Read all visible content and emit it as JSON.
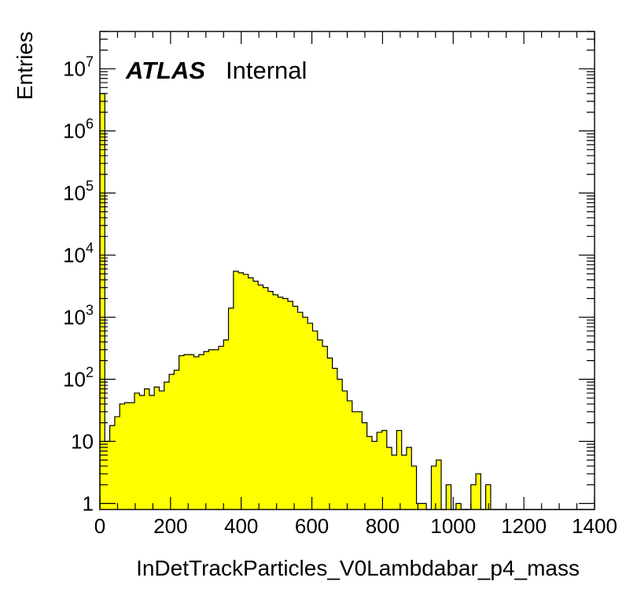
{
  "chart_data": {
    "type": "bar",
    "title": "",
    "xlabel": "InDetTrackParticles_V0Lambdabar_p4_mass",
    "ylabel": "Entries",
    "label_bold": "ATLAS",
    "label_normal": "Internal",
    "xlim": [
      0,
      1400
    ],
    "ylim": [
      0.8,
      40000000
    ],
    "yscale": "log",
    "x_ticks": [
      "0",
      "200",
      "400",
      "600",
      "800",
      "1000",
      "1200",
      "1400"
    ],
    "y_ticks": [
      {
        "value": 1,
        "base": "1",
        "exp": ""
      },
      {
        "value": 10,
        "base": "10",
        "exp": ""
      },
      {
        "value": 100,
        "base": "10",
        "exp": "2"
      },
      {
        "value": 1000,
        "base": "10",
        "exp": "3"
      },
      {
        "value": 10000,
        "base": "10",
        "exp": "4"
      },
      {
        "value": 100000,
        "base": "10",
        "exp": "5"
      },
      {
        "value": 1000000,
        "base": "10",
        "exp": "6"
      },
      {
        "value": 10000000,
        "base": "10",
        "exp": "7"
      }
    ],
    "bin_width": 14,
    "bin_edges_start": 0,
    "values": [
      4000000,
      10,
      18,
      25,
      40,
      42,
      42,
      60,
      55,
      70,
      55,
      75,
      65,
      90,
      120,
      140,
      240,
      250,
      250,
      230,
      250,
      280,
      300,
      300,
      340,
      430,
      1400,
      5500,
      5200,
      4900,
      4300,
      3800,
      3300,
      3000,
      2600,
      2300,
      2100,
      2000,
      1800,
      1500,
      1200,
      1000,
      800,
      600,
      430,
      340,
      220,
      150,
      100,
      65,
      45,
      30,
      30,
      20,
      12,
      10,
      14,
      15,
      8,
      6,
      15,
      6,
      8,
      4,
      1,
      1,
      0,
      4,
      5,
      0,
      2,
      0,
      1,
      0,
      0,
      2,
      3,
      0,
      2,
      0,
      0,
      0,
      0,
      0,
      0,
      0,
      0,
      0,
      0,
      0,
      0,
      0,
      0,
      0,
      0,
      0,
      0,
      0,
      0,
      0
    ],
    "fill_color": "#ffff00",
    "line_color": "#000000",
    "grid": false,
    "legend": "none"
  }
}
